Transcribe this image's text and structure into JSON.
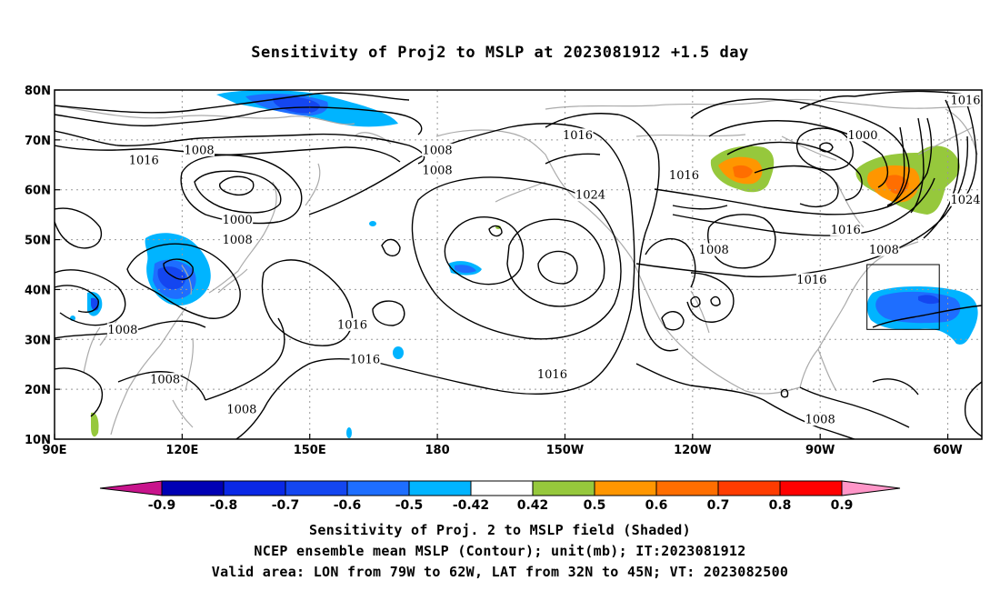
{
  "title": "Sensitivity of Proj2 to MSLP at 2023081912 +1.5 day",
  "captions": [
    "Sensitivity of Proj. 2 to MSLP field (Shaded)",
    "NCEP ensemble mean MSLP (Contour); unit(mb); IT:2023081912",
    "Valid area: LON from 79W to 62W, LAT from 32N to 45N; VT: 2023082500"
  ],
  "map": {
    "lon_range": [
      90,
      308
    ],
    "lat_range": [
      10,
      80
    ],
    "lon_ticks": [
      {
        "value": 90,
        "label": "90E"
      },
      {
        "value": 120,
        "label": "120E"
      },
      {
        "value": 150,
        "label": "150E"
      },
      {
        "value": 180,
        "label": "180"
      },
      {
        "value": 210,
        "label": "150W"
      },
      {
        "value": 240,
        "label": "120W"
      },
      {
        "value": 270,
        "label": "90W"
      },
      {
        "value": 300,
        "label": "60W"
      }
    ],
    "lat_ticks": [
      {
        "value": 10,
        "label": "10N"
      },
      {
        "value": 20,
        "label": "20N"
      },
      {
        "value": 30,
        "label": "30N"
      },
      {
        "value": 40,
        "label": "40N"
      },
      {
        "value": 50,
        "label": "50N"
      },
      {
        "value": 60,
        "label": "60N"
      },
      {
        "value": 70,
        "label": "70N"
      },
      {
        "value": 80,
        "label": "80N"
      }
    ],
    "grid": true,
    "valid_box": {
      "lon": [
        281,
        298
      ],
      "lat": [
        32,
        45
      ]
    },
    "contour_labels": [
      {
        "text": "1016",
        "lon": 111,
        "lat": 66
      },
      {
        "text": "1008",
        "lon": 124,
        "lat": 68
      },
      {
        "text": "1008",
        "lon": 180,
        "lat": 68
      },
      {
        "text": "1008",
        "lon": 180,
        "lat": 64
      },
      {
        "text": "1000",
        "lon": 133,
        "lat": 54
      },
      {
        "text": "1008",
        "lon": 133,
        "lat": 50
      },
      {
        "text": "1016",
        "lon": 213,
        "lat": 71
      },
      {
        "text": "1016",
        "lon": 238,
        "lat": 63
      },
      {
        "text": "1024",
        "lon": 216,
        "lat": 59
      },
      {
        "text": "1000",
        "lon": 280,
        "lat": 71
      },
      {
        "text": "1016",
        "lon": 306,
        "lat": 78
      },
      {
        "text": "1024",
        "lon": 306,
        "lat": 58
      },
      {
        "text": "1016",
        "lon": 276,
        "lat": 52
      },
      {
        "text": "1008",
        "lon": 285,
        "lat": 48
      },
      {
        "text": "1008",
        "lon": 245,
        "lat": 48
      },
      {
        "text": "1016",
        "lon": 268,
        "lat": 42
      },
      {
        "text": "1008",
        "lon": 106,
        "lat": 32
      },
      {
        "text": "1016",
        "lon": 160,
        "lat": 33
      },
      {
        "text": "1016",
        "lon": 163,
        "lat": 26
      },
      {
        "text": "1016",
        "lon": 207,
        "lat": 23
      },
      {
        "text": "1008",
        "lon": 116,
        "lat": 22
      },
      {
        "text": "1008",
        "lon": 134,
        "lat": 16
      },
      {
        "text": "1008",
        "lon": 270,
        "lat": 14
      }
    ]
  },
  "colorbar": {
    "labels": [
      "-0.9",
      "-0.8",
      "-0.7",
      "-0.6",
      "-0.5",
      "-0.42",
      "0.42",
      "0.5",
      "0.6",
      "0.7",
      "0.8",
      "0.9"
    ],
    "colors": [
      "#0000b4",
      "#0a28e6",
      "#1446f0",
      "#1e6eff",
      "#00b4ff",
      "#ffffff",
      "#96c83c",
      "#ff9600",
      "#ff6e00",
      "#ff3c00",
      "#ff0000"
    ],
    "low_end_color": "#c8148c",
    "high_end_color": "#ff96c8"
  },
  "shading_colors": {
    "blue_dark": "#1446f0",
    "blue_mid": "#1e6eff",
    "blue_light": "#00b4ff",
    "green": "#96c83c",
    "orange": "#ff9600",
    "orange_dark": "#ff6e00"
  }
}
